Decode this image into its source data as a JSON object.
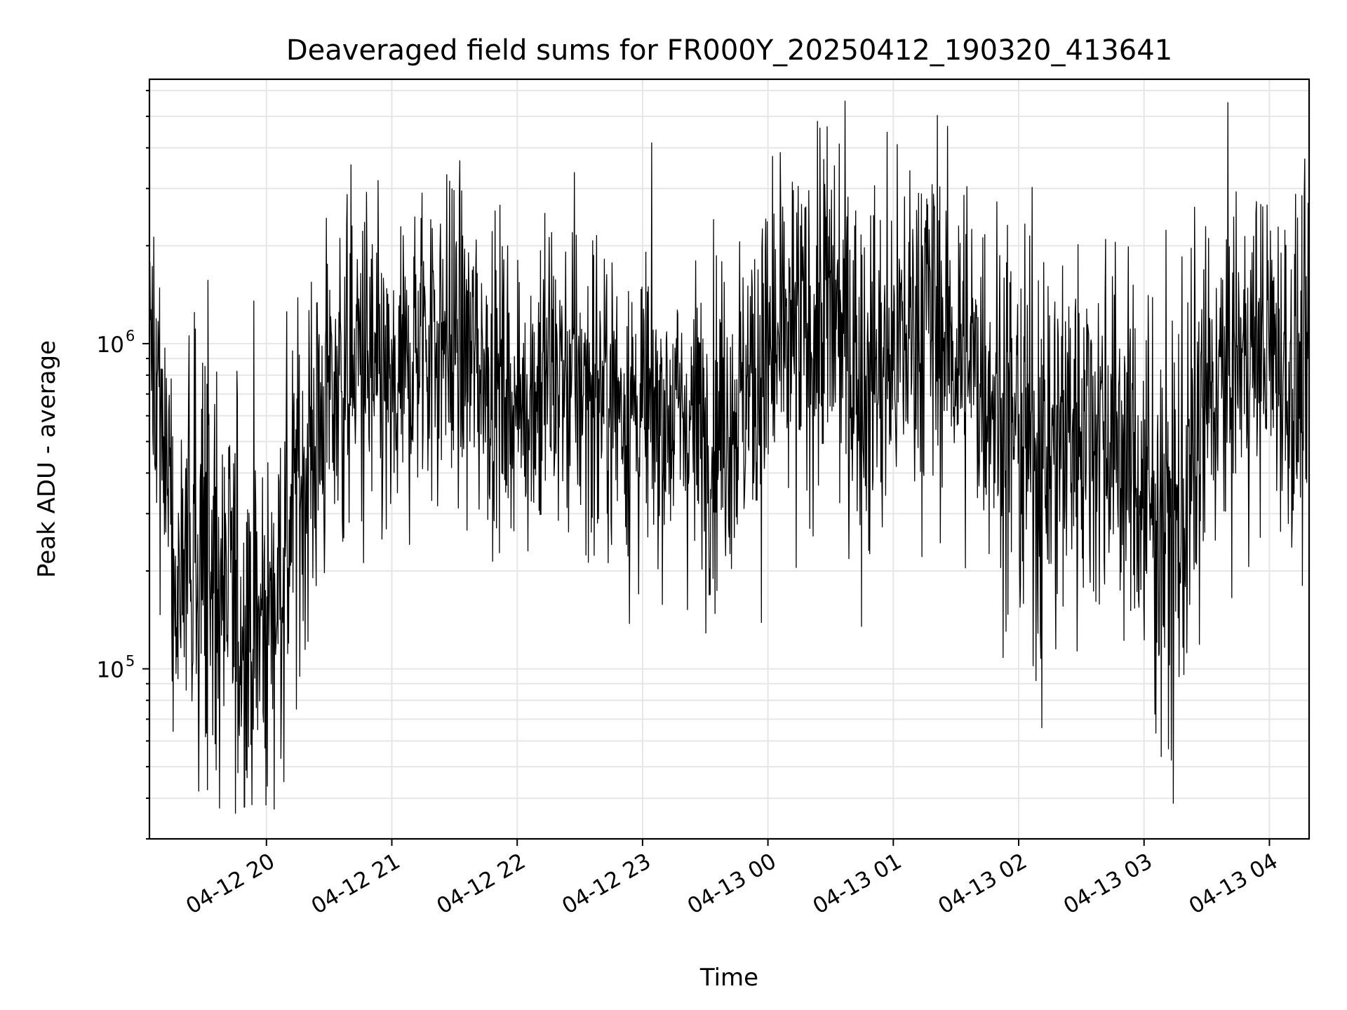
{
  "chart_data": {
    "type": "line",
    "title": "Deaveraged field sums for FR000Y_20250412_190320_413641",
    "xlabel": "Time",
    "ylabel": "Peak ADU - average",
    "yscale": "log",
    "ylim": [
      30000,
      6500000
    ],
    "xlim": [
      "2025-04-12 19:04:00",
      "2025-04-13 04:19:00"
    ],
    "grid": true,
    "legend": "none",
    "line_color": "#000000",
    "x_ticks": [
      {
        "value": "2025-04-12 20:00:00",
        "label": "04-12 20"
      },
      {
        "value": "2025-04-12 21:00:00",
        "label": "04-12 21"
      },
      {
        "value": "2025-04-12 22:00:00",
        "label": "04-12 22"
      },
      {
        "value": "2025-04-12 23:00:00",
        "label": "04-12 23"
      },
      {
        "value": "2025-04-13 00:00:00",
        "label": "04-13 00"
      },
      {
        "value": "2025-04-13 01:00:00",
        "label": "04-13 01"
      },
      {
        "value": "2025-04-13 02:00:00",
        "label": "04-13 02"
      },
      {
        "value": "2025-04-13 03:00:00",
        "label": "04-13 03"
      },
      {
        "value": "2025-04-13 04:00:00",
        "label": "04-13 04"
      }
    ],
    "y_ticks": [
      {
        "value": 100000,
        "base": "10",
        "exponent": "5"
      },
      {
        "value": 1000000,
        "base": "10",
        "exponent": "6"
      }
    ],
    "series": [
      {
        "x": [
          "2025-04-12 19:04:00",
          "2025-04-12 19:15:00",
          "2025-04-12 19:30:00",
          "2025-04-12 19:45:00",
          "2025-04-12 20:00:00",
          "2025-04-12 20:15:00",
          "2025-04-12 20:30:00",
          "2025-04-12 20:45:00",
          "2025-04-12 21:00:00",
          "2025-04-12 21:15:00",
          "2025-04-12 21:30:00",
          "2025-04-12 21:45:00",
          "2025-04-12 22:00:00",
          "2025-04-12 22:15:00",
          "2025-04-12 22:30:00",
          "2025-04-12 22:45:00",
          "2025-04-12 23:00:00",
          "2025-04-12 23:15:00",
          "2025-04-12 23:30:00",
          "2025-04-12 23:45:00",
          "2025-04-13 00:00:00",
          "2025-04-13 00:15:00",
          "2025-04-13 00:30:00",
          "2025-04-13 00:45:00",
          "2025-04-13 01:00:00",
          "2025-04-13 01:15:00",
          "2025-04-13 01:30:00",
          "2025-04-13 01:45:00",
          "2025-04-13 02:00:00",
          "2025-04-13 02:15:00",
          "2025-04-13 02:30:00",
          "2025-04-13 02:45:00",
          "2025-04-13 03:00:00",
          "2025-04-13 03:15:00",
          "2025-04-13 03:30:00",
          "2025-04-13 03:45:00",
          "2025-04-13 04:00:00",
          "2025-04-13 04:15:00"
        ],
        "y": [
          1200000,
          250000,
          200000,
          150000,
          130000,
          350000,
          700000,
          900000,
          600000,
          1100000,
          1000000,
          850000,
          650000,
          800000,
          750000,
          700000,
          600000,
          620000,
          550000,
          650000,
          900000,
          1000000,
          1300000,
          800000,
          900000,
          1300000,
          950000,
          800000,
          500000,
          450000,
          600000,
          550000,
          350000,
          250000,
          650000,
          900000,
          1000000,
          700000
        ],
        "spread": [
          0.25,
          0.4,
          0.5,
          0.45,
          0.45,
          0.4,
          0.4,
          0.35,
          0.35,
          0.35,
          0.35,
          0.35,
          0.3,
          0.35,
          0.35,
          0.35,
          0.35,
          0.3,
          0.35,
          0.35,
          0.4,
          0.4,
          0.4,
          0.45,
          0.4,
          0.4,
          0.35,
          0.35,
          0.45,
          0.45,
          0.4,
          0.4,
          0.45,
          0.5,
          0.4,
          0.35,
          0.35,
          0.4
        ]
      }
    ]
  }
}
